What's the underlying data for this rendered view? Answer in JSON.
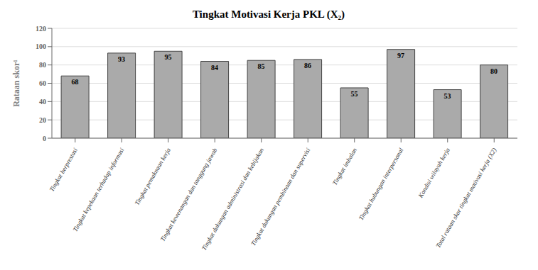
{
  "chart_data": {
    "type": "bar",
    "title": "Tingkat Motivasi Kerja PKL (X₂)",
    "ylabel": "Rataan skor¹",
    "categories": [
      "Tingkat berprestasi",
      "Tingkat kepekaan terhadap informasi",
      "Tingkat pemaknaan kerja",
      "Tingkat kewenangan dan tanggung jawab",
      "Tingkat dukungan administrasi dan kebijakan",
      "Tingkat dukungan pembinaan dan supervisi",
      "Tingkat imbalan",
      "Tingkat hubungan interpersonal",
      "Kondisi wilayah kerja",
      "Total rataan skor tingkat motivasi kerja (X2)"
    ],
    "values": [
      68,
      93,
      95,
      84,
      85,
      86,
      55,
      97,
      53,
      80
    ],
    "color": "#aaaaaa",
    "ylim": [
      0,
      120
    ],
    "yticks": [
      0,
      20,
      40,
      60,
      80,
      100,
      120
    ],
    "grid": true,
    "data_labels": true
  }
}
